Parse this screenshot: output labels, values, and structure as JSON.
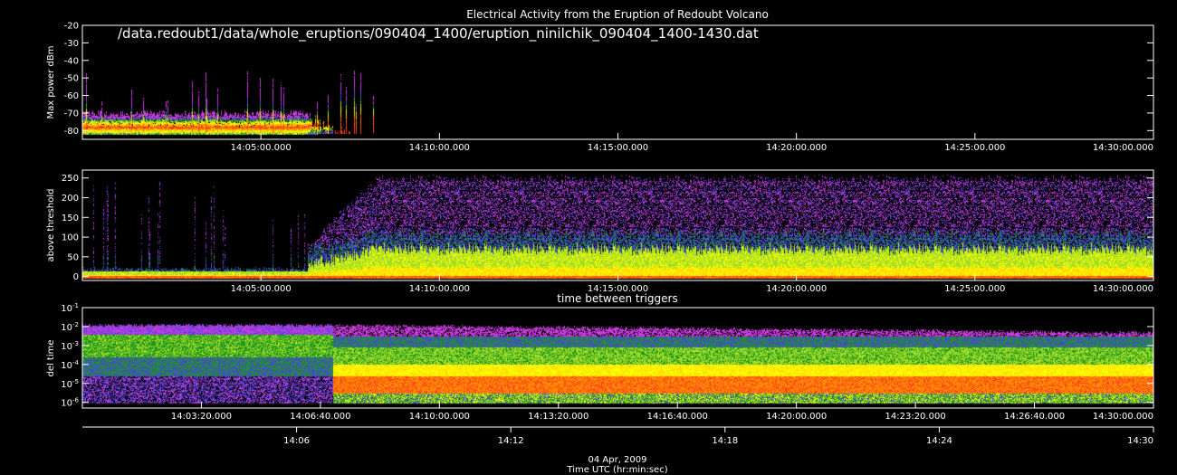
{
  "page": {
    "title": "Electrical Activity from the Eruption of Redoubt Volcano",
    "filepath": "/data.redoubt1/data/whole_eruptions/090404_1400/eruption_ninilchik_090404_1400-1430.dat"
  },
  "chart_data": [
    {
      "type": "heatmap",
      "title": "",
      "ylabel": "Max power dBm",
      "ylim": [
        -85,
        -20
      ],
      "yticks": [
        "-20",
        "-30",
        "-40",
        "-50",
        "-60",
        "-70",
        "-80"
      ],
      "yvals": [
        -20,
        -30,
        -40,
        -50,
        -60,
        -70,
        -80
      ],
      "xlim_min": [
        0,
        30
      ],
      "xticks": [
        "14:05:00.000",
        "14:10:00.000",
        "14:15:00.000",
        "14:20:00.000",
        "14:25:00.000",
        "14:30:00.000"
      ],
      "xvals_min": [
        5,
        10,
        15,
        20,
        25,
        30
      ],
      "colormap": [
        "#3a0a20",
        "#c01e3c",
        "#ff3c1e",
        "#ff8c00",
        "#ffd200",
        "#ffff00",
        "#a0dc28",
        "#1e961e",
        "#4646dc",
        "#c83cdc"
      ]
    },
    {
      "type": "heatmap",
      "title": "",
      "ylabel": "above threshold",
      "ylim": [
        -10,
        270
      ],
      "yticks": [
        "250",
        "200",
        "150",
        "100",
        "50",
        "0"
      ],
      "yvals": [
        250,
        200,
        150,
        100,
        50,
        0
      ],
      "xlim_min": [
        0,
        30
      ],
      "xticks": [
        "14:05:00.000",
        "14:10:00.000",
        "14:15:00.000",
        "14:20:00.000",
        "14:25:00.000",
        "14:30:00.000"
      ],
      "xvals_min": [
        5,
        10,
        15,
        20,
        25,
        30
      ]
    },
    {
      "type": "heatmap",
      "title": "time between triggers",
      "ylabel": "del time",
      "yscale": "log",
      "ylim": [
        5e-07,
        0.1
      ],
      "yticks": [
        {
          "base": "10",
          "exp": "-1",
          "value": 0.1
        },
        {
          "base": "10",
          "exp": "-2",
          "value": 0.01
        },
        {
          "base": "10",
          "exp": "-3",
          "value": 0.001
        },
        {
          "base": "10",
          "exp": "-4",
          "value": 0.0001
        },
        {
          "base": "10",
          "exp": "-5",
          "value": 1e-05
        },
        {
          "base": "10",
          "exp": "-6",
          "value": 1e-06
        }
      ],
      "xlim_min": [
        0,
        30
      ],
      "xticks": [
        "14:03:20.000",
        "14:06:40.000",
        "14:10:00.000",
        "14:13:20.000",
        "14:16:40.000",
        "14:20:00.000",
        "14:23:20.000",
        "14:26:40.000",
        "14:30:00.000"
      ],
      "xvals_min": [
        3.333,
        6.667,
        10,
        13.333,
        16.667,
        20,
        23.333,
        26.667,
        30
      ],
      "xticks2": [
        "14:06",
        "14:12",
        "14:18",
        "14:24",
        "14:30"
      ],
      "xvals2_min": [
        6,
        12,
        18,
        24,
        30
      ],
      "date": "04 Apr, 2009",
      "xlabel": "Time UTC (hr:min:sec)"
    }
  ]
}
